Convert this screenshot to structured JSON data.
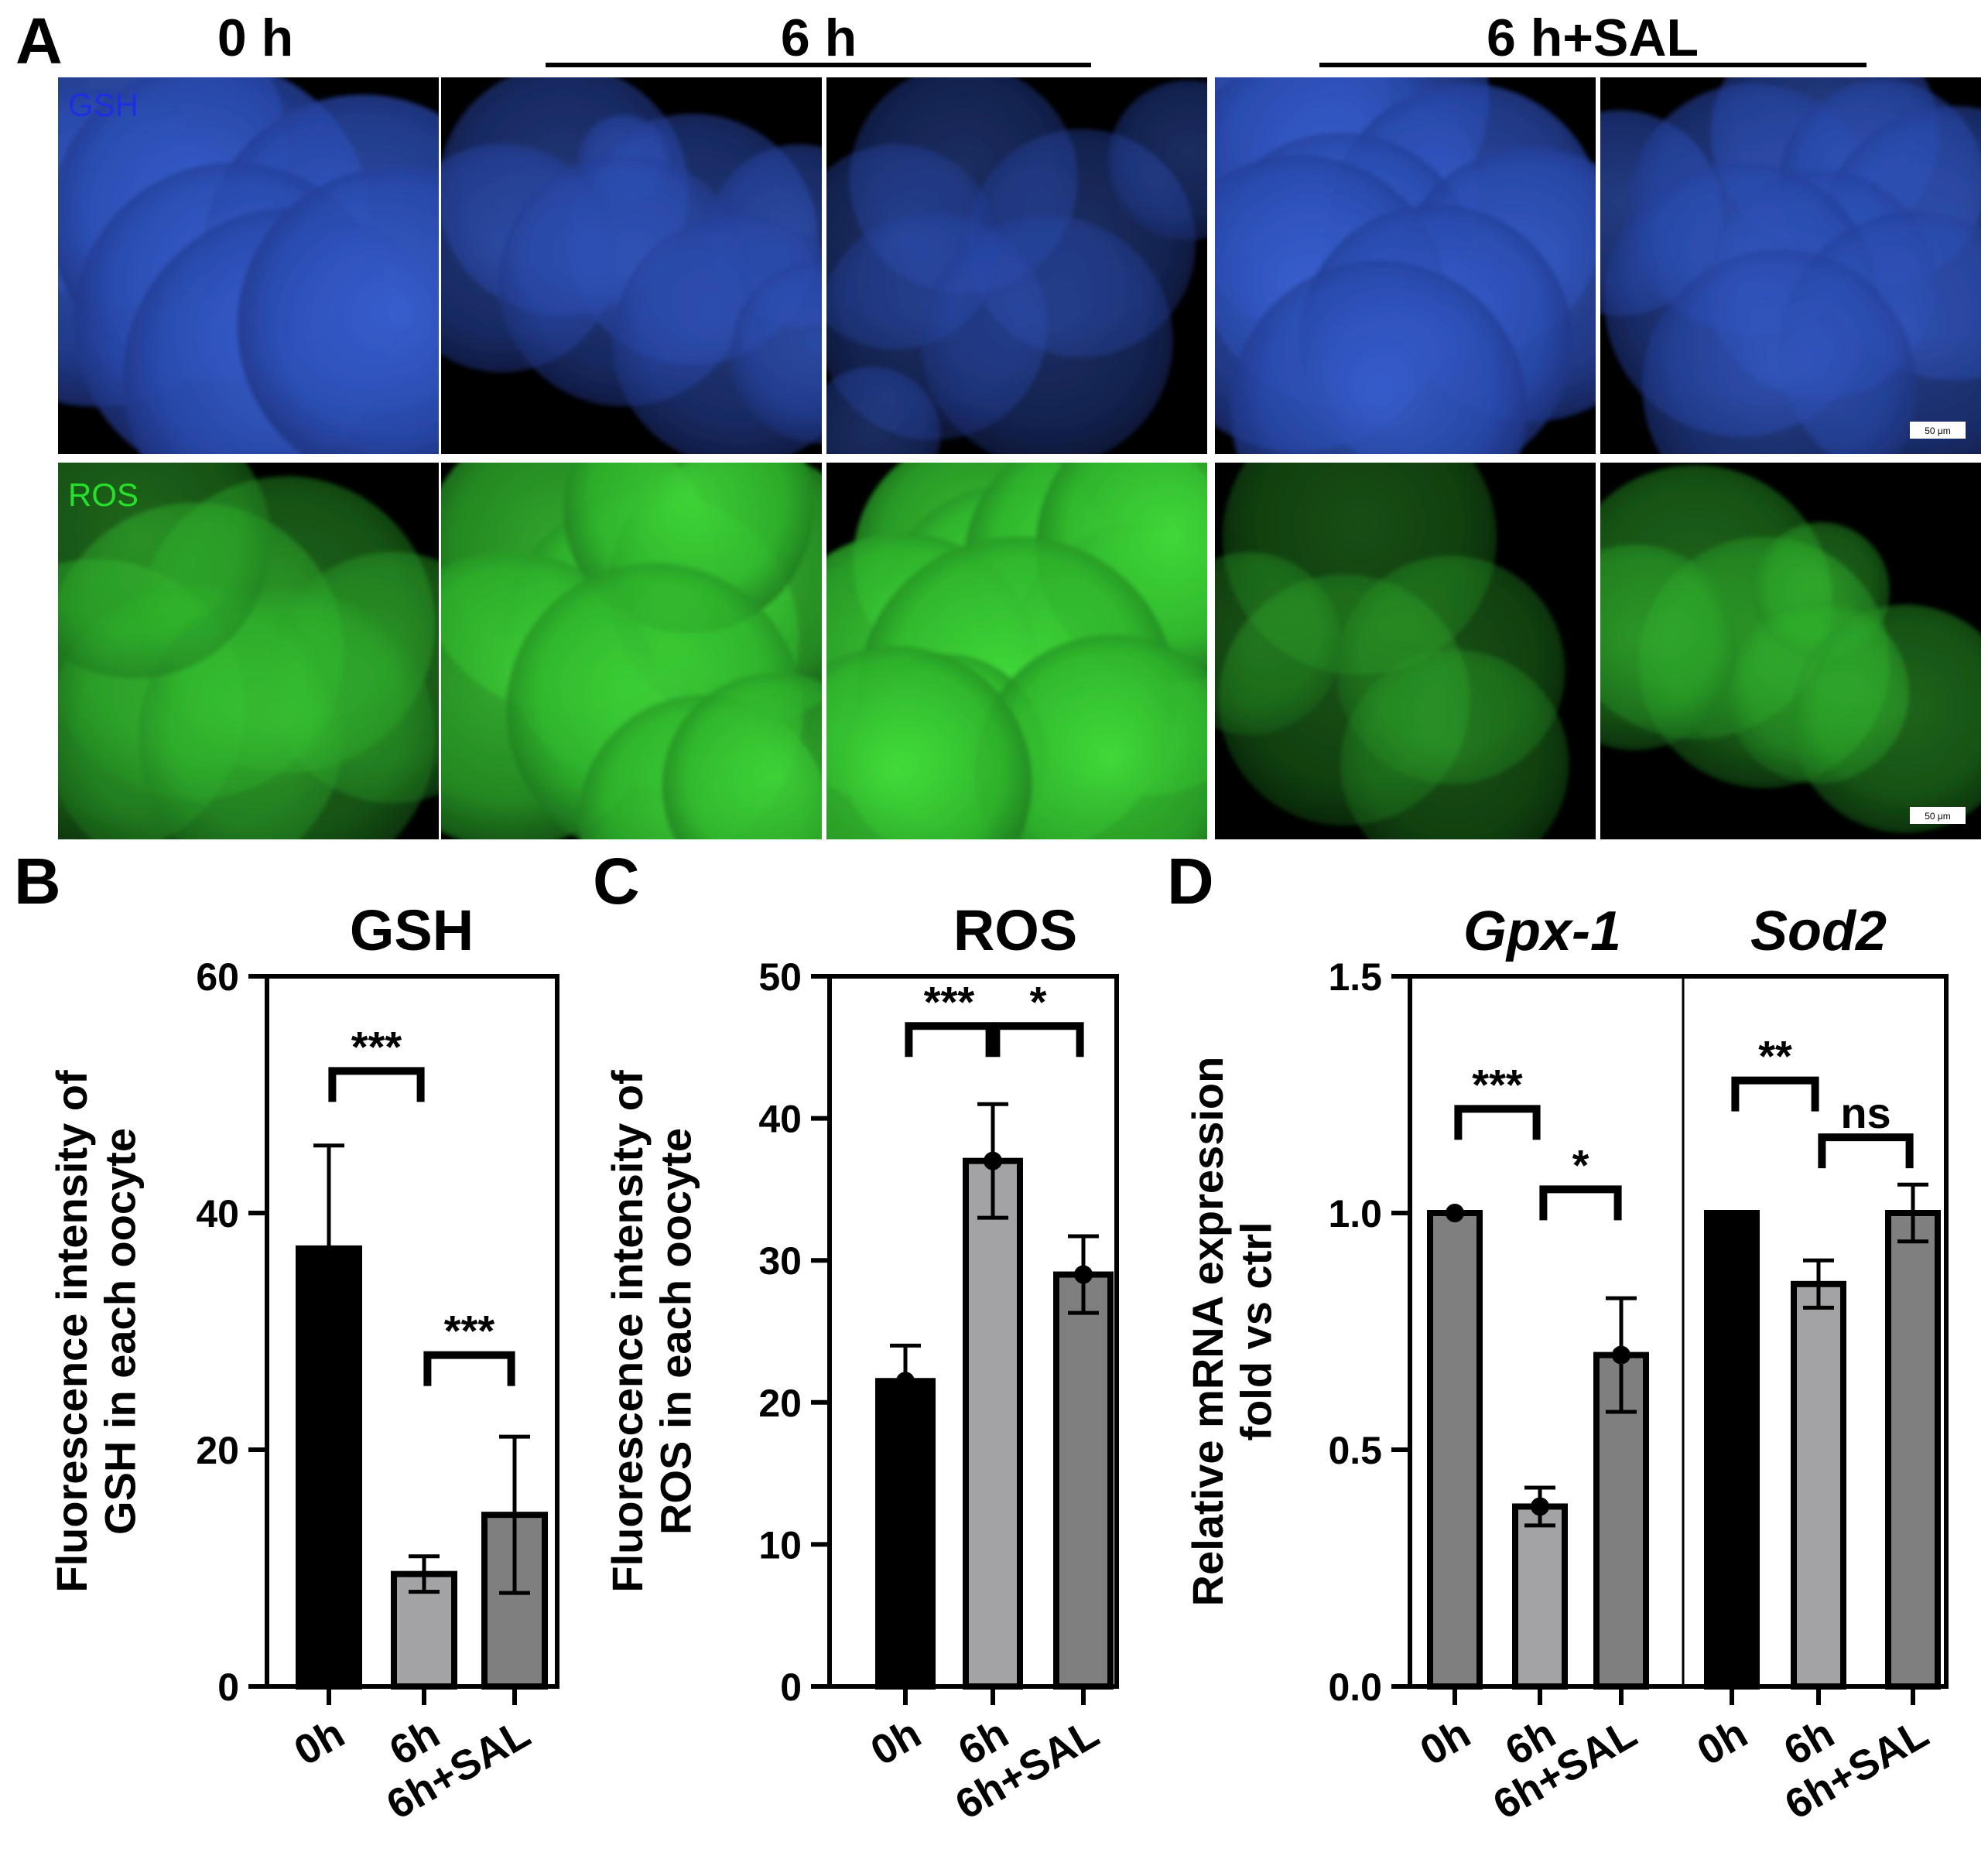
{
  "figure": {
    "panel_letters": [
      "A",
      "B",
      "C",
      "D"
    ],
    "colors": {
      "background": "#000000",
      "gsh_channel": "#2a4fb8",
      "ros_channel": "#2fc832",
      "bar_0h": "#000000",
      "bar_6h": "#a3a3a6",
      "bar_6h_sal": "#7f7f7f",
      "bar_d_0h_gpx": "#7f7f7f"
    }
  },
  "panel_a": {
    "letter": "A",
    "column_headers": [
      "0 h",
      "6 h",
      "6 h+SAL"
    ],
    "row_labels": [
      "GSH",
      "ROS"
    ],
    "row_label_colors": [
      "#1f2ee0",
      "#27e02b"
    ],
    "scale_bar_label": "50 μm",
    "gsh_images": [
      {
        "cells": [
          [
            0.18,
            0.18,
            0.14
          ],
          [
            0.1,
            0.45,
            0.14
          ],
          [
            0.4,
            0.38,
            0.14
          ],
          [
            0.8,
            0.47,
            0.14
          ],
          [
            0.46,
            0.65,
            0.14
          ],
          [
            0.62,
            0.8,
            0.15
          ],
          [
            0.89,
            0.66,
            0.14
          ]
        ],
        "brightness": 0.78
      },
      {
        "cells": [
          [
            0.32,
            0.3,
            0.11
          ],
          [
            0.48,
            0.22,
            0.04
          ],
          [
            0.66,
            0.43,
            0.11
          ],
          [
            0.94,
            0.42,
            0.08
          ],
          [
            0.16,
            0.48,
            0.1
          ],
          [
            0.48,
            0.54,
            0.11
          ],
          [
            0.78,
            0.7,
            0.11
          ],
          [
            1.0,
            0.73,
            0.08
          ]
        ],
        "brightness": 0.55
      },
      {
        "cells": [
          [
            0.36,
            0.27,
            0.1
          ],
          [
            0.67,
            0.44,
            0.1
          ],
          [
            0.18,
            0.45,
            0.09
          ],
          [
            0.28,
            0.66,
            0.1
          ],
          [
            0.58,
            0.7,
            0.11
          ],
          [
            0.95,
            0.22,
            0.07
          ],
          [
            0.12,
            0.95,
            0.06
          ]
        ],
        "brightness": 0.45
      },
      {
        "cells": [
          [
            0.07,
            0.08,
            0.13
          ],
          [
            0.33,
            0.05,
            0.13
          ],
          [
            0.3,
            0.3,
            0.13
          ],
          [
            0.66,
            0.38,
            0.12
          ],
          [
            0.33,
            0.51,
            0.12
          ],
          [
            0.83,
            0.55,
            0.12
          ],
          [
            0.22,
            0.6,
            0.13
          ],
          [
            0.58,
            0.7,
            0.12
          ],
          [
            0.43,
            0.88,
            0.13
          ]
        ],
        "brightness": 0.75
      },
      {
        "cells": [
          [
            0.59,
            0.15,
            0.1
          ],
          [
            0.05,
            0.36,
            0.09
          ],
          [
            0.4,
            0.35,
            0.11
          ],
          [
            0.74,
            0.28,
            0.09
          ],
          [
            0.93,
            0.44,
            0.12
          ],
          [
            0.58,
            0.55,
            0.1
          ],
          [
            0.37,
            0.59,
            0.12
          ],
          [
            0.83,
            0.72,
            0.12
          ],
          [
            0.47,
            0.82,
            0.12
          ]
        ],
        "brightness": 0.6
      }
    ],
    "ros_images": [
      {
        "cells": [
          [
            0.1,
            0.65,
            0.13
          ],
          [
            0.36,
            0.5,
            0.13
          ],
          [
            0.6,
            0.43,
            0.13
          ],
          [
            0.88,
            0.57,
            0.11
          ],
          [
            0.36,
            0.72,
            0.13
          ],
          [
            0.6,
            0.73,
            0.13
          ],
          [
            0.2,
            0.21,
            0.12
          ]
        ],
        "brightness": 0.45
      },
      {
        "cells": [
          [
            0.33,
            0.27,
            0.13
          ],
          [
            0.55,
            0.47,
            0.13
          ],
          [
            0.8,
            0.33,
            0.12
          ],
          [
            0.65,
            0.12,
            0.11
          ],
          [
            0.18,
            0.63,
            0.13
          ],
          [
            0.56,
            0.66,
            0.13
          ],
          [
            0.69,
            0.95,
            0.11
          ],
          [
            0.88,
            0.86,
            0.1
          ]
        ],
        "brightness": 0.75
      },
      {
        "cells": [
          [
            0.4,
            0.26,
            0.11
          ],
          [
            0.49,
            0.42,
            0.12
          ],
          [
            0.72,
            0.27,
            0.12
          ],
          [
            0.84,
            0.52,
            0.12
          ],
          [
            0.91,
            0.22,
            0.12
          ],
          [
            0.2,
            0.55,
            0.12
          ],
          [
            0.5,
            0.62,
            0.14
          ],
          [
            0.31,
            0.78,
            0.09
          ],
          [
            0.75,
            0.82,
            0.12
          ],
          [
            0.18,
            0.85,
            0.12
          ]
        ],
        "brightness": 0.85
      },
      {
        "cells": [
          [
            0.38,
            0.2,
            0.12
          ],
          [
            0.34,
            0.63,
            0.11
          ],
          [
            0.62,
            0.55,
            0.1
          ],
          [
            0.63,
            0.8,
            0.1
          ],
          [
            0.09,
            0.48,
            0.08
          ]
        ],
        "brightness": 0.35
      },
      {
        "cells": [
          [
            0.25,
            0.37,
            0.12
          ],
          [
            0.43,
            0.53,
            0.11
          ],
          [
            0.58,
            0.34,
            0.06
          ],
          [
            0.57,
            0.61,
            0.08
          ],
          [
            0.8,
            0.68,
            0.1
          ],
          [
            0.09,
            0.49,
            0.09
          ]
        ],
        "brightness": 0.45
      }
    ]
  },
  "chart_data": [
    {
      "panel": "B",
      "type": "bar",
      "title": "GSH",
      "ylabel_lines": [
        "Fluorescence intensity of",
        "GSH in each oocyte"
      ],
      "categories": [
        "0h",
        "6h",
        "6h+SAL"
      ],
      "values": [
        37,
        9.5,
        14.5
      ],
      "errors": [
        8.7,
        1.5,
        6.6
      ],
      "ylim": [
        0,
        60
      ],
      "yticks": [
        "0",
        "20",
        "40",
        "60"
      ],
      "bar_colors": [
        "#000000",
        "#a3a3a6",
        "#7f7f7f"
      ],
      "significance": [
        {
          "from": 0,
          "to": 1,
          "label": "***",
          "y": 52
        },
        {
          "from": 1,
          "to": 2,
          "label": "***",
          "y": 28
        }
      ]
    },
    {
      "panel": "C",
      "type": "bar",
      "title": "ROS",
      "ylabel_lines": [
        "Fluorescence intensity of",
        "ROS in each oocyte"
      ],
      "categories": [
        "0h",
        "6h",
        "6h+SAL"
      ],
      "values": [
        21.5,
        37,
        29
      ],
      "errors": [
        2.5,
        4,
        2.7
      ],
      "points": [
        21.5,
        37,
        29
      ],
      "ylim": [
        0,
        50
      ],
      "yticks": [
        "0",
        "10",
        "20",
        "30",
        "40",
        "50"
      ],
      "bar_colors": [
        "#000000",
        "#a3a3a6",
        "#7f7f7f"
      ],
      "significance": [
        {
          "from": 0,
          "to": 1,
          "label": "***",
          "y": 46.5
        },
        {
          "from": 1,
          "to": 2,
          "label": "*",
          "y": 46.5
        }
      ]
    },
    {
      "panel": "D",
      "type": "bar",
      "ylabel_lines": [
        "Relative mRNA expression",
        "fold vs ctrl"
      ],
      "ylim": [
        0,
        1.5
      ],
      "yticks": [
        "0.0",
        "0.5",
        "1.0",
        "1.5"
      ],
      "groups": [
        {
          "title": "Gpx-1",
          "categories": [
            "0h",
            "6h",
            "6h+SAL"
          ],
          "values": [
            1.0,
            0.38,
            0.7
          ],
          "errors": [
            0.0,
            0.04,
            0.12
          ],
          "points": [
            1.0,
            0.38,
            0.7
          ],
          "bar_colors": [
            "#7f7f7f",
            "#a3a3a6",
            "#7f7f7f"
          ],
          "significance": [
            {
              "from": 0,
              "to": 1,
              "label": "***",
              "y": 1.22
            },
            {
              "from": 1,
              "to": 2,
              "label": "*",
              "y": 1.05
            }
          ]
        },
        {
          "title": "Sod2",
          "categories": [
            "0h",
            "6h",
            "6h+SAL"
          ],
          "values": [
            1.0,
            0.85,
            1.0
          ],
          "errors": [
            0.0,
            0.05,
            0.06
          ],
          "bar_colors": [
            "#000000",
            "#a3a3a6",
            "#7f7f7f"
          ],
          "significance": [
            {
              "from": 0,
              "to": 1,
              "label": "**",
              "y": 1.28
            },
            {
              "from": 1,
              "to": 2,
              "label": "ns",
              "y": 1.16
            }
          ]
        }
      ]
    }
  ]
}
